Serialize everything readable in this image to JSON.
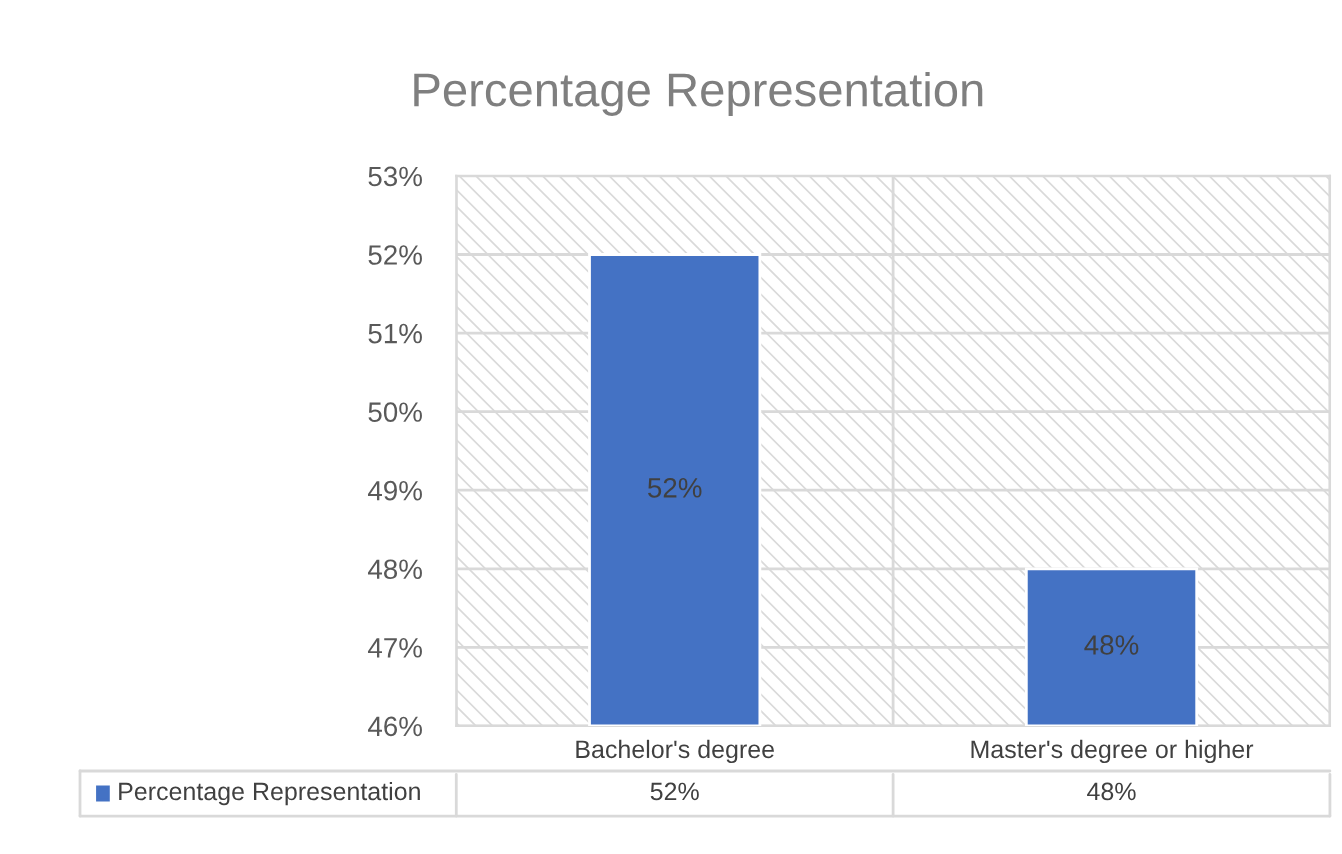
{
  "chart_data": {
    "type": "bar",
    "title": "Percentage Representation",
    "categories": [
      "Bachelor's degree",
      "Master's degree or higher"
    ],
    "series": [
      {
        "name": "Percentage Representation",
        "color": "#4472c4",
        "values": [
          52,
          48
        ],
        "value_labels": [
          "52%",
          "48%"
        ]
      }
    ],
    "ylim": [
      46,
      53
    ],
    "yticks": [
      {
        "value": 46,
        "label": "46%"
      },
      {
        "value": 47,
        "label": "47%"
      },
      {
        "value": 48,
        "label": "48%"
      },
      {
        "value": 49,
        "label": "49%"
      },
      {
        "value": 50,
        "label": "50%"
      },
      {
        "value": 51,
        "label": "51%"
      },
      {
        "value": 52,
        "label": "52%"
      },
      {
        "value": 53,
        "label": "53%"
      }
    ],
    "grid": "y",
    "legend": "bottom"
  }
}
